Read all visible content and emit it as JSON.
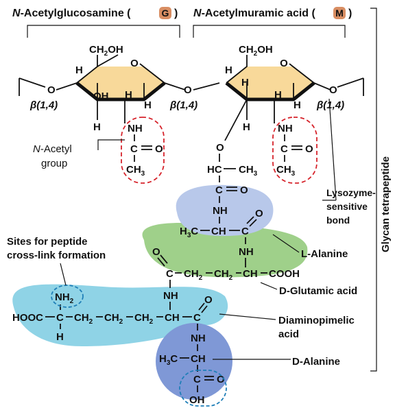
{
  "titles": {
    "nag_prefix": "N",
    "nag_rest": "-Acetylglucosamine (",
    "nag_badge": "G",
    "nag_close": ")",
    "nam_prefix": "N",
    "nam_rest": "-Acetylmuramic acid (",
    "nam_badge": "M",
    "nam_close": ")"
  },
  "atoms": {
    "ch2oh": "CH2OH",
    "o": "O",
    "h": "H",
    "oh": "OH",
    "nh": "NH",
    "c": "C",
    "ch3": "CH3",
    "hc": "HC",
    "h3c": "H3C",
    "ch": "CH",
    "ch2": "CH2",
    "cooh": "COOH",
    "hooc": "HOOC",
    "nh2": "NH2"
  },
  "linkage": "β(1,4)",
  "labels": {
    "nacetyl_prefix": "N",
    "nacetyl_rest": "-Acetyl",
    "nacetyl_line2": "group",
    "lysozyme_1": "Lysozyme-",
    "lysozyme_2": "sensitive",
    "lysozyme_3": "bond",
    "crosslink_1": "Sites for peptide",
    "crosslink_2": "cross-link formation",
    "l_alanine": "L-Alanine",
    "d_glutamic": "D-Glutamic acid",
    "dap_1": "Diaminopimelic",
    "dap_2": "acid",
    "d_alanine": "D-Alanine",
    "glycan": "Glycan tetrapeptide"
  },
  "colors": {
    "sugar_fill": "#f8d99a",
    "l_alanine": "#b8c8ea",
    "d_glutamic": "#9fd08a",
    "dap": "#8fd3e6",
    "d_alanine": "#7f98d6",
    "badge": "#d98e63",
    "red_dash": "#d6232b",
    "blue_dash": "#1f7fb8"
  },
  "icons": {
    "badge_shape": "rounded-square"
  }
}
